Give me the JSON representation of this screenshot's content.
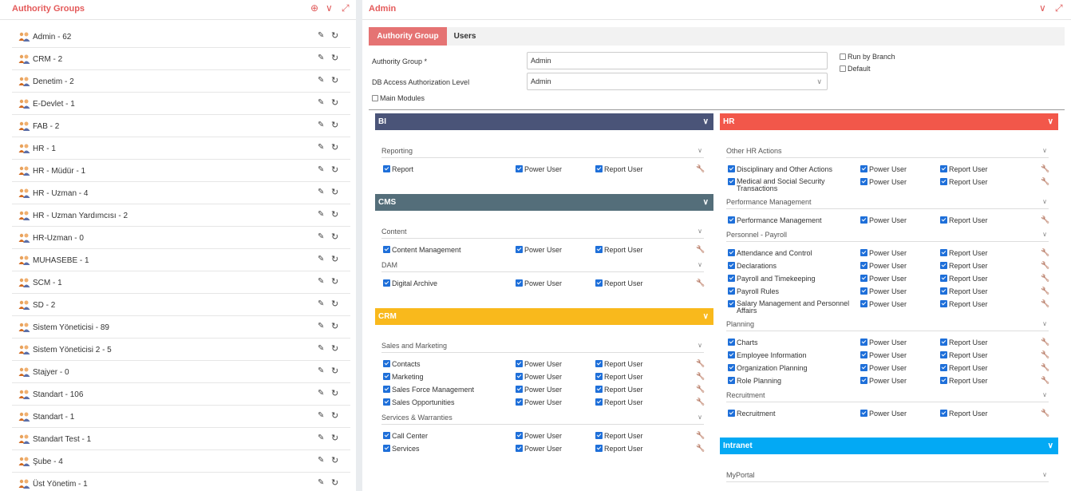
{
  "left_panel": {
    "title": "Authority Groups",
    "groups": [
      "Admin - 62",
      "CRM - 2",
      "Denetim - 2",
      "E-Devlet - 1",
      "FAB - 2",
      "HR - 1",
      "HR - Müdür - 1",
      "HR - Uzman - 4",
      "HR - Uzman Yardımcısı - 2",
      "HR-Uzman - 0",
      "MUHASEBE - 1",
      "SCM - 1",
      "SD - 2",
      "Sistem Yöneticisi - 89",
      "Sistem Yöneticisi 2 - 5",
      "Stajyer - 0",
      "Standart - 106",
      "Standart - 1",
      "Standart Test - 1",
      "Şube - 4",
      "Üst Yönetim - 1"
    ]
  },
  "right_panel": {
    "title": "Admin",
    "tabs": [
      "Authority Group",
      "Users"
    ],
    "form": {
      "authority_group_label": "Authority Group *",
      "authority_group_value": "Admin",
      "db_access_label": "DB Access Authorization Level",
      "db_access_value": "Admin",
      "main_modules_label": "Main Modules",
      "run_by_branch_label": "Run by Branch",
      "default_label": "Default"
    },
    "modules_left": [
      {
        "name": "BI",
        "color": "#4a5478",
        "groups": [
          {
            "name": "Reporting",
            "items": [
              "Report"
            ]
          }
        ]
      },
      {
        "name": "CMS",
        "color": "#546e7a",
        "groups": [
          {
            "name": "Content",
            "items": [
              "Content Management"
            ]
          },
          {
            "name": "DAM",
            "items": [
              "Digital Archive"
            ]
          }
        ]
      },
      {
        "name": "CRM",
        "color": "#f9b91c",
        "groups": [
          {
            "name": "Sales and Marketing",
            "items": [
              "Contacts",
              "Marketing",
              "Sales Force Management",
              "Sales Opportunities"
            ]
          },
          {
            "name": "Services & Warranties",
            "items": [
              "Call Center",
              "Services"
            ]
          }
        ]
      }
    ],
    "modules_right": [
      {
        "name": "HR",
        "color": "#f2574a",
        "groups": [
          {
            "name": "Other HR Actions",
            "items": [
              "Disciplinary and Other Actions",
              "Medical and Social Security Transactions"
            ]
          },
          {
            "name": "Performance Management",
            "items": [
              "Performance Management"
            ]
          },
          {
            "name": "Personnel - Payroll",
            "items": [
              "Attendance and Control",
              "Declarations",
              "Payroll and Timekeeping",
              "Payroll Rules",
              "Salary Management and Personnel Affairs"
            ]
          },
          {
            "name": "Planning",
            "items": [
              "Charts",
              "Employee Information",
              "Organization Planning",
              "Role Planning"
            ]
          },
          {
            "name": "Recruitment",
            "items": [
              "Recruitment"
            ]
          }
        ]
      },
      {
        "name": "Intranet",
        "color": "#03a9f4",
        "groups": [
          {
            "name": "MyPortal",
            "items": []
          }
        ]
      }
    ],
    "power_user_label": "Power User",
    "report_user_label": "Report User"
  }
}
